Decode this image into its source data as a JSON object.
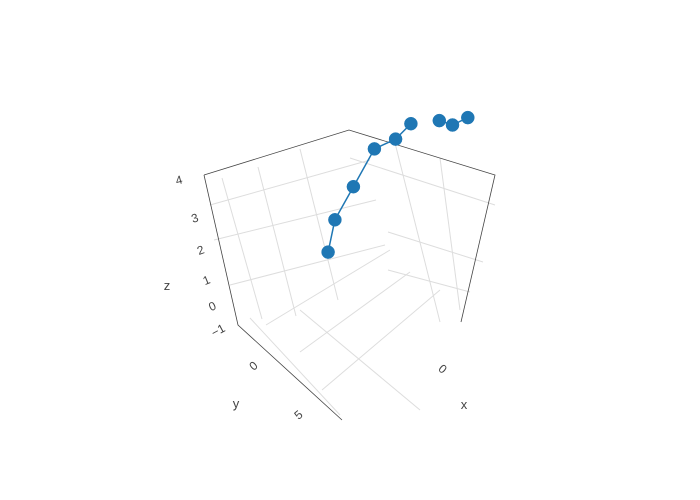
{
  "chart_data": {
    "type": "scatter3d",
    "mode": "lines+markers",
    "color": "#1f77b4",
    "title": "",
    "axes": {
      "x": {
        "title": "x",
        "ticks": [
          "0"
        ]
      },
      "y": {
        "title": "y",
        "ticks": [
          "0",
          "5"
        ]
      },
      "z": {
        "title": "z",
        "ticks": [
          "−1",
          "0",
          "1",
          "2",
          "3",
          "4"
        ]
      }
    },
    "series": [
      {
        "points": [
          {
            "x": -2.0,
            "y": 0.5,
            "z": 0.7
          },
          {
            "x": -1.0,
            "y": 1.0,
            "z": 1.2
          },
          {
            "x": 1.0,
            "y": 1.5,
            "z": 1.6
          },
          {
            "x": 2.0,
            "y": 0.5,
            "z": 2.8
          },
          {
            "x": 3.0,
            "y": -0.5,
            "z": 3.3
          },
          {
            "x": 3.5,
            "y": -1.5,
            "z": 4.0
          }
        ]
      },
      {
        "points": [
          {
            "x": 8.0,
            "y": -2.0,
            "z": 3.8
          },
          {
            "x": 7.5,
            "y": -1.0,
            "z": 3.3
          },
          {
            "x": 8.0,
            "y": 1.0,
            "z": 2.6
          }
        ]
      }
    ]
  }
}
